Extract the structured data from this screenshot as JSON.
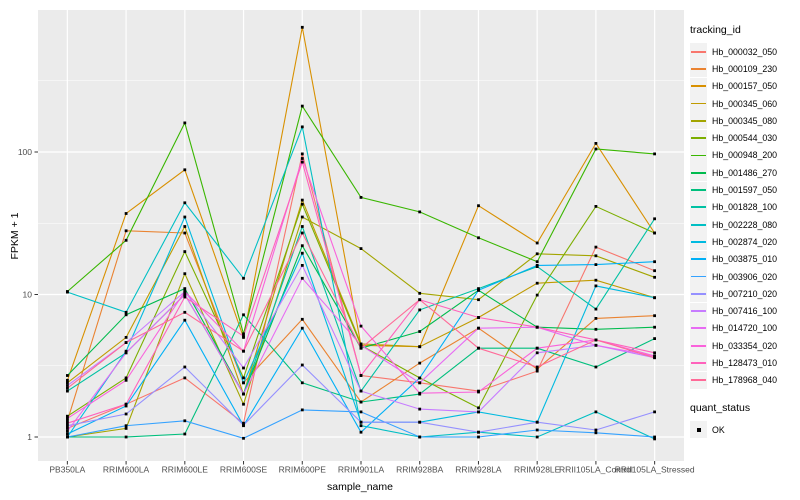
{
  "figure": {
    "panel_background": "#EBEBEB",
    "grid_color": "#FFFFFF",
    "tick_color": "#333333",
    "tick_label_color": "#4D4D4D",
    "point_color": "#000000"
  },
  "axes": {
    "x_title": "sample_name",
    "y_title": "FPKM + 1",
    "y_tick_labels": [
      "1",
      "10",
      "100"
    ],
    "y_tick_values": [
      1,
      10,
      100
    ]
  },
  "legend": {
    "tracking_title": "tracking_id",
    "quant_title": "quant_status",
    "quant_items": [
      {
        "label": "OK",
        "marker": "black-square"
      }
    ]
  },
  "chart_data": {
    "type": "line",
    "title": "",
    "xlabel": "sample_name",
    "ylabel": "FPKM + 1",
    "y_scale": "log10",
    "ylim": [
      0.66,
      1000
    ],
    "grid": true,
    "legend_position": "right",
    "point_marker": "small-black-square",
    "categories": [
      "PB350LA",
      "RRIM600LA",
      "RRIM600LE",
      "RRIM600SE",
      "RRIM600PE",
      "RRIM901LA",
      "RRIM928BA",
      "RRIM928LA",
      "RRIM928LE",
      "RRII105LA_Control",
      "RRII105LA_Stressed"
    ],
    "minor_grid_values": [
      3.162,
      31.62,
      316.2
    ],
    "series": [
      {
        "name": "Hb_000032_050",
        "color": "#F8766D",
        "values": [
          1.15,
          1.7,
          2.6,
          1.25,
          97,
          2.7,
          2.4,
          2.1,
          2.9,
          21.5,
          14.7
        ]
      },
      {
        "name": "Hb_000109_230",
        "color": "#EA8331",
        "values": [
          1.3,
          28,
          27,
          2.4,
          6.7,
          1.76,
          3.3,
          5.8,
          3.0,
          6.8,
          7.1
        ]
      },
      {
        "name": "Hb_000157_050",
        "color": "#D89000",
        "values": [
          2.5,
          37,
          75,
          5.0,
          750,
          4.4,
          4.3,
          42,
          23,
          115,
          27
        ]
      },
      {
        "name": "Hb_000345_060",
        "color": "#C09B00",
        "values": [
          2.4,
          5.0,
          30,
          2.0,
          46,
          4.5,
          4.3,
          6.9,
          12,
          12.6,
          9.5
        ]
      },
      {
        "name": "Hb_000345_080",
        "color": "#A3A500",
        "values": [
          1.0,
          1.15,
          14,
          1.7,
          35,
          21,
          10.2,
          9.2,
          19.3,
          18.7,
          13.2
        ]
      },
      {
        "name": "Hb_000544_030",
        "color": "#7CAE00",
        "values": [
          1.4,
          2.6,
          20,
          2.6,
          43,
          4.4,
          2.6,
          1.6,
          9.9,
          41.5,
          27
        ]
      },
      {
        "name": "Hb_000948_200",
        "color": "#39B600",
        "values": [
          10.5,
          24,
          160,
          5.3,
          210,
          48,
          38,
          25,
          17,
          105,
          97
        ]
      },
      {
        "name": "Hb_001486_270",
        "color": "#00BB4E",
        "values": [
          2.7,
          7.2,
          11,
          2.0,
          22,
          4.2,
          5.5,
          10.7,
          5.9,
          5.7,
          5.9
        ]
      },
      {
        "name": "Hb_001597_050",
        "color": "#00BF7D",
        "values": [
          1.0,
          1.0,
          1.05,
          7.2,
          2.4,
          1.76,
          2.0,
          4.2,
          4.2,
          3.1,
          4.9
        ]
      },
      {
        "name": "Hb_001828_100",
        "color": "#00C1A3",
        "values": [
          2.1,
          3.9,
          10,
          2.0,
          30,
          2.1,
          7.8,
          11,
          15.7,
          7.9,
          34
        ]
      },
      {
        "name": "Hb_002228_080",
        "color": "#00BFC4",
        "values": [
          10.4,
          7.5,
          44,
          13,
          150,
          1.2,
          1.0,
          1.08,
          1.0,
          1.5,
          0.97
        ]
      },
      {
        "name": "Hb_002874_020",
        "color": "#00BAE0",
        "values": [
          1.0,
          4.0,
          35,
          2.4,
          19.5,
          1.27,
          1.27,
          1.5,
          1.27,
          11.5,
          9.5
        ]
      },
      {
        "name": "Hb_003875_010",
        "color": "#00B0F6",
        "values": [
          1.05,
          1.65,
          6.6,
          1.2,
          5.8,
          1.08,
          2.6,
          10.7,
          16,
          16.2,
          17
        ]
      },
      {
        "name": "Hb_003906_020",
        "color": "#35A2FF",
        "values": [
          1.0,
          1.2,
          1.3,
          0.98,
          1.55,
          1.5,
          1.0,
          1.0,
          1.12,
          1.07,
          1.0
        ]
      },
      {
        "name": "Hb_007210_020",
        "color": "#9590FF",
        "values": [
          1.2,
          1.45,
          3.1,
          1.21,
          3.2,
          1.27,
          1.27,
          1.08,
          1.27,
          1.12,
          1.5
        ]
      },
      {
        "name": "Hb_007416_100",
        "color": "#C77CFF",
        "values": [
          2.3,
          4.6,
          10.5,
          3.05,
          16,
          2.1,
          1.57,
          1.5,
          3.9,
          4.4,
          3.6
        ]
      },
      {
        "name": "Hb_014720_100",
        "color": "#E76BF3",
        "values": [
          1.1,
          3.9,
          10,
          2.0,
          13,
          4.4,
          2.4,
          5.8,
          5.9,
          4.4,
          3.7
        ]
      },
      {
        "name": "Hb_033354_020",
        "color": "#FA62DB",
        "values": [
          1.35,
          2.5,
          10.5,
          4.0,
          90,
          6.0,
          2.03,
          2.07,
          4.2,
          4.8,
          3.7
        ]
      },
      {
        "name": "Hb_128473_010",
        "color": "#FF62BC",
        "values": [
          1.25,
          1.7,
          9.6,
          5.1,
          85,
          2.7,
          9.2,
          6.9,
          5.9,
          4.8,
          3.9
        ]
      },
      {
        "name": "Hb_178968_040",
        "color": "#FF6A98",
        "values": [
          2.2,
          4.6,
          7.5,
          4.0,
          27,
          4.2,
          9.2,
          4.2,
          3.1,
          4.8,
          3.6
        ]
      }
    ]
  }
}
